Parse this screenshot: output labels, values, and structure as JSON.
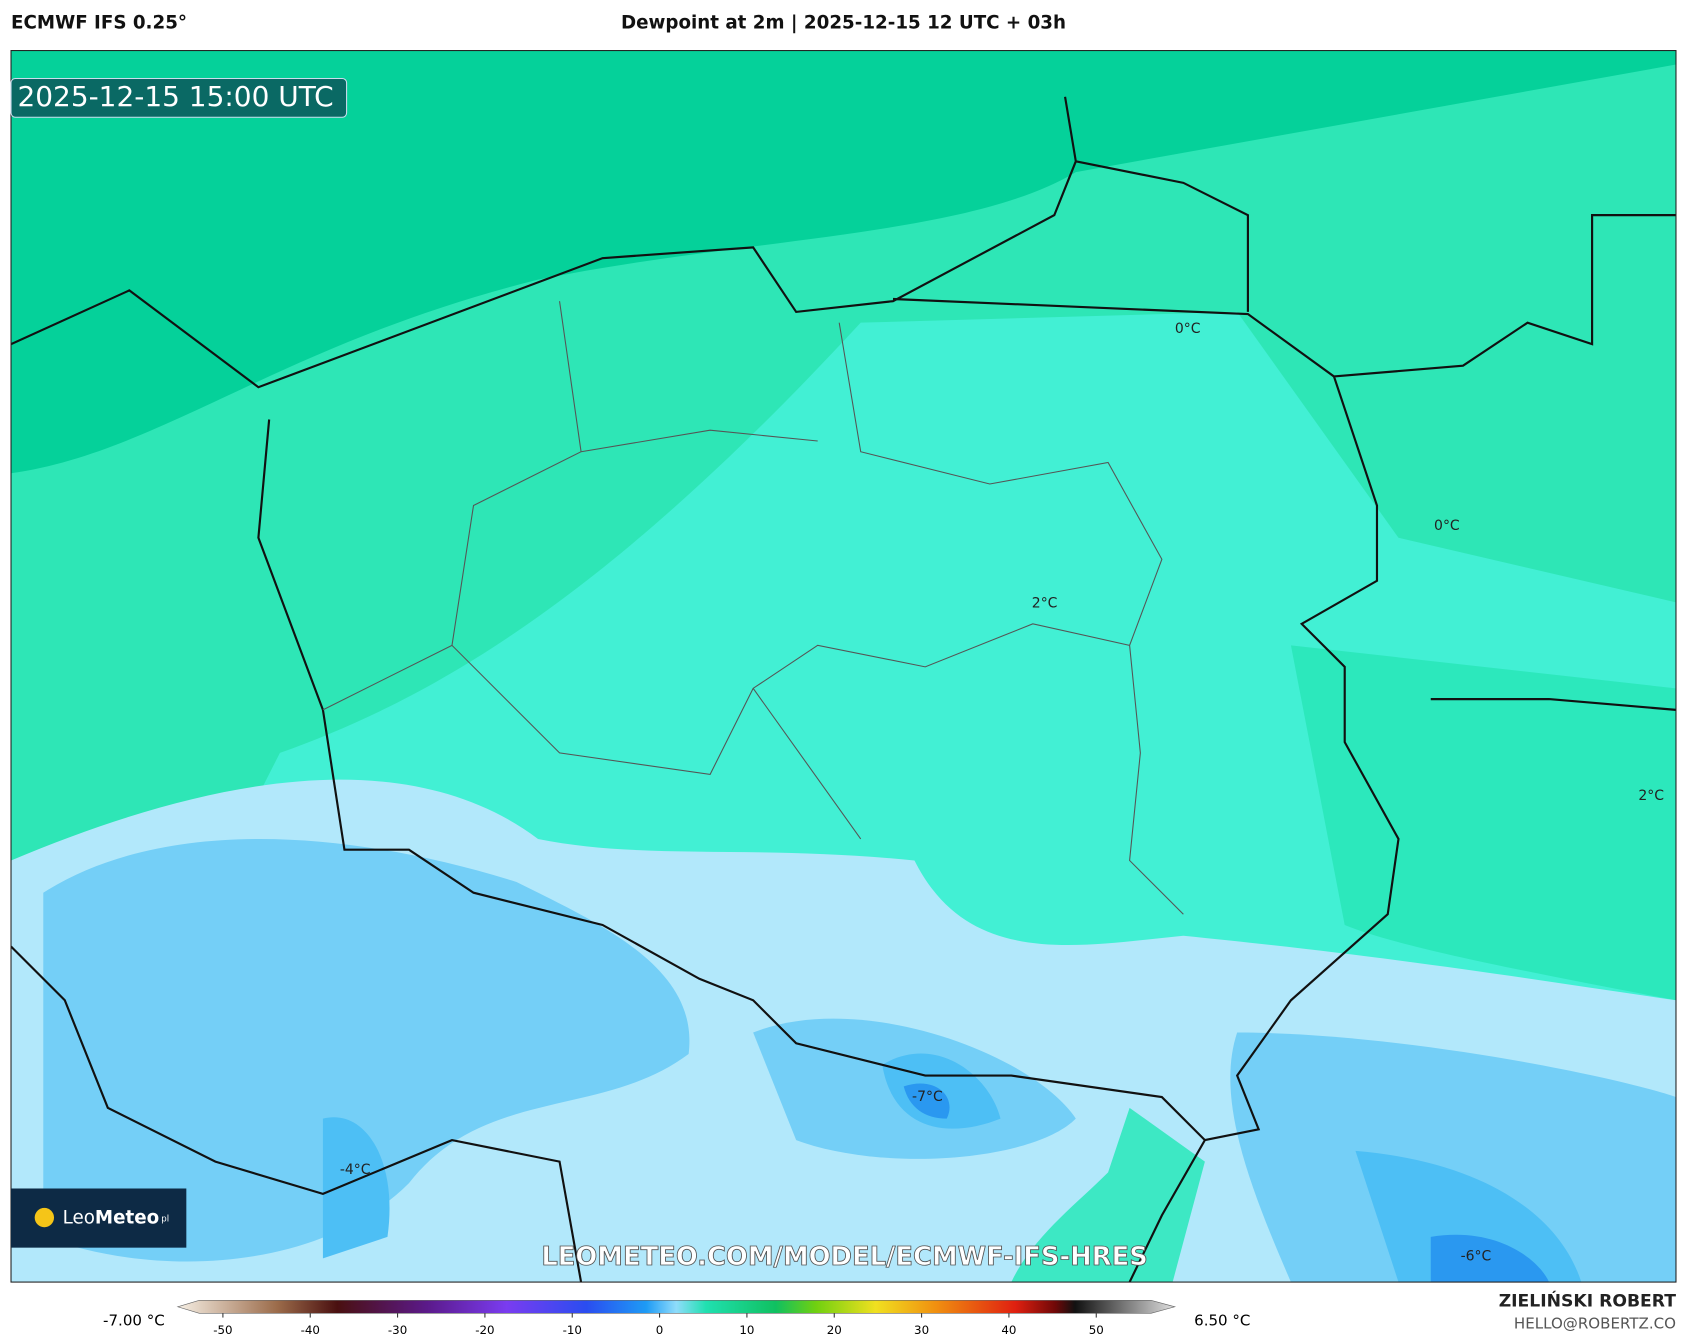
{
  "header": {
    "left": "ECMWF IFS 0.25°",
    "center": "Dewpoint at 2m | 2025-12-15 12 UTC + 03h"
  },
  "map": {
    "timestamp": "2025-12-15 15:00 UTC",
    "contour_labels": [
      "0°C",
      "0°C",
      "2°C",
      "2°C",
      "-7°C",
      "-4°C",
      "-6°C"
    ],
    "watermark": "LEOMETEO.COM/MODEL/ECMWF-IFS-HRES"
  },
  "logo": {
    "part1": "Leo",
    "part2": "Meteo",
    "suffix": "pl"
  },
  "colorbar": {
    "min_label": "-7.00 °C",
    "max_label": "6.50 °C",
    "ticks": [
      -50,
      -40,
      -30,
      -20,
      -10,
      0,
      10,
      20,
      30,
      40,
      50
    ]
  },
  "footer": {
    "author": "ZIELIŃSKI ROBERT",
    "email": "HELLO@ROBERTZ.CO"
  }
}
